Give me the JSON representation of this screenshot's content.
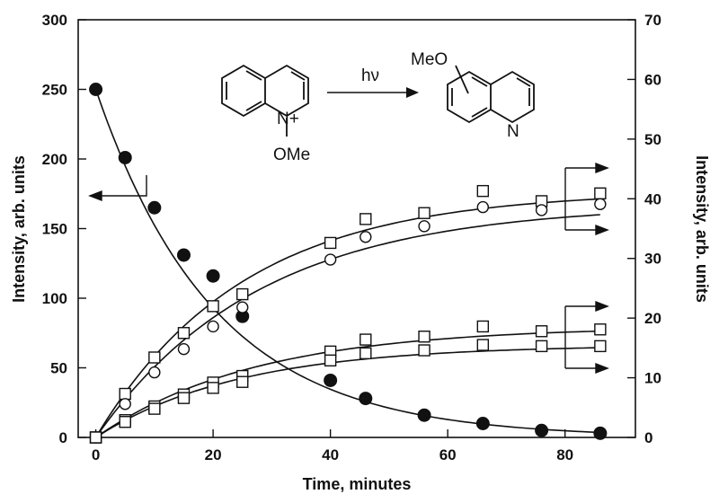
{
  "chart_data": {
    "type": "scatter",
    "xlabel": "Time, minutes",
    "ylabel_left": "Intensity, arb. units",
    "ylabel_right": "Intensity, arb. units",
    "xlim": [
      -3,
      92
    ],
    "ylim_left": [
      0,
      300
    ],
    "ylim_right": [
      0,
      70
    ],
    "x_ticks": [
      0,
      20,
      40,
      60,
      80
    ],
    "y_ticks_left": [
      0,
      50,
      100,
      150,
      200,
      250,
      300
    ],
    "y_ticks_right": [
      0,
      10,
      20,
      30,
      40,
      50,
      60,
      70
    ],
    "grid": false,
    "annotations": {
      "reactant_charge": "N+",
      "reactant_group": "OMe",
      "arrow_label": "hν",
      "product_group": "MeO",
      "product_n": "N"
    },
    "series": [
      {
        "marker": "filled-circle",
        "axis": "left",
        "x": [
          0,
          5,
          10,
          15,
          20,
          25,
          40,
          46,
          56,
          66,
          76,
          86
        ],
        "y": [
          250,
          201,
          165,
          131,
          116,
          87,
          41,
          28,
          16,
          10,
          5,
          3
        ]
      },
      {
        "marker": "open-square",
        "axis": "right",
        "x": [
          0,
          5,
          10,
          15,
          20,
          25,
          40,
          46,
          56,
          66,
          76,
          86
        ],
        "y": [
          0,
          7.3,
          13.4,
          17.5,
          22,
          24,
          32.6,
          36.6,
          37.6,
          41.3,
          39.6,
          40.9
        ]
      },
      {
        "marker": "open-circle",
        "axis": "right",
        "x": [
          0,
          5,
          10,
          15,
          20,
          25,
          40,
          46,
          56,
          66,
          76,
          86
        ],
        "y": [
          0,
          5.6,
          10.9,
          14.8,
          18.6,
          21.8,
          29.8,
          33.6,
          35.4,
          38.6,
          38.1,
          39.1
        ]
      },
      {
        "marker": "open-square",
        "axis": "right",
        "x": [
          0,
          5,
          10,
          15,
          20,
          25,
          40,
          46,
          56,
          66,
          76,
          86
        ],
        "y": [
          0,
          2.9,
          5.2,
          7.2,
          9.2,
          10.3,
          14.4,
          16.4,
          16.9,
          18.6,
          17.8,
          18.1
        ]
      },
      {
        "marker": "open-square",
        "axis": "right",
        "x": [
          0,
          5,
          10,
          15,
          20,
          25,
          40,
          46,
          56,
          66,
          76,
          86
        ],
        "y": [
          0,
          2.6,
          4.8,
          6.6,
          8.3,
          9.3,
          12.9,
          14.1,
          14.6,
          15.5,
          15.3,
          15.3
        ]
      }
    ]
  }
}
